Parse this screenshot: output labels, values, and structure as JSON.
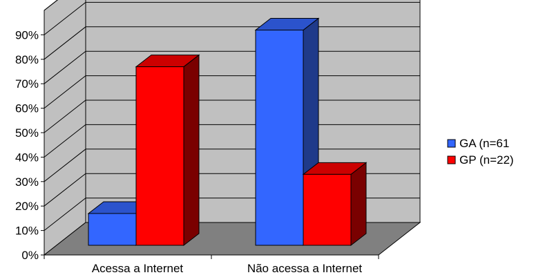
{
  "chart_data": {
    "type": "bar",
    "style": "3d-clustered-column",
    "categories": [
      "Acessa a Internet",
      "Não acessa a Internet"
    ],
    "series": [
      {
        "name": "GA (n=61",
        "values": [
          13,
          88
        ],
        "color": "#3366FF",
        "side_color": "#1F3A8A",
        "top_color": "#2B53CC"
      },
      {
        "name": "GP (n=22)",
        "values": [
          73,
          29
        ],
        "color": "#FF0000",
        "side_color": "#7A0000",
        "top_color": "#CC0000"
      }
    ],
    "yticks": [
      "0%",
      "10%",
      "20%",
      "30%",
      "40%",
      "50%",
      "60%",
      "70%",
      "80%",
      "90%"
    ],
    "ylim": [
      0,
      100
    ],
    "grid": true,
    "wall_color": "#C0C0C0",
    "floor_color": "#808080",
    "legend_position": "right"
  }
}
